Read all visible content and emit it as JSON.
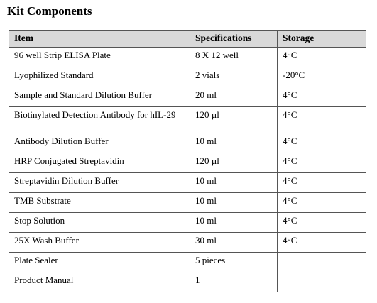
{
  "header": {
    "title": "Kit Components"
  },
  "table": {
    "columns": [
      "Item",
      "Specifications",
      "Storage"
    ],
    "rows": [
      [
        "96 well Strip ELISA Plate",
        "8 X 12 well",
        "4°C"
      ],
      [
        "Lyophilized Standard",
        "2 vials",
        "-20°C"
      ],
      [
        "Sample and Standard Dilution Buffer",
        "20 ml",
        "4°C"
      ],
      [
        "Biotinylated Detection Antibody  for hIL-29",
        "120 µl",
        "4°C"
      ],
      [
        "Antibody Dilution Buffer",
        "10 ml",
        "4°C"
      ],
      [
        "HRP Conjugated Streptavidin",
        "120 µl",
        "4°C"
      ],
      [
        "Streptavidin Dilution Buffer",
        "10 ml",
        "4°C"
      ],
      [
        "TMB Substrate",
        "10 ml",
        "4°C"
      ],
      [
        "Stop Solution",
        "10 ml",
        "4°C"
      ],
      [
        "25X Wash Buffer",
        "30 ml",
        "4°C"
      ],
      [
        "Plate Sealer",
        "5 pieces"
      ],
      [
        "Product Manual",
        "1"
      ]
    ]
  }
}
